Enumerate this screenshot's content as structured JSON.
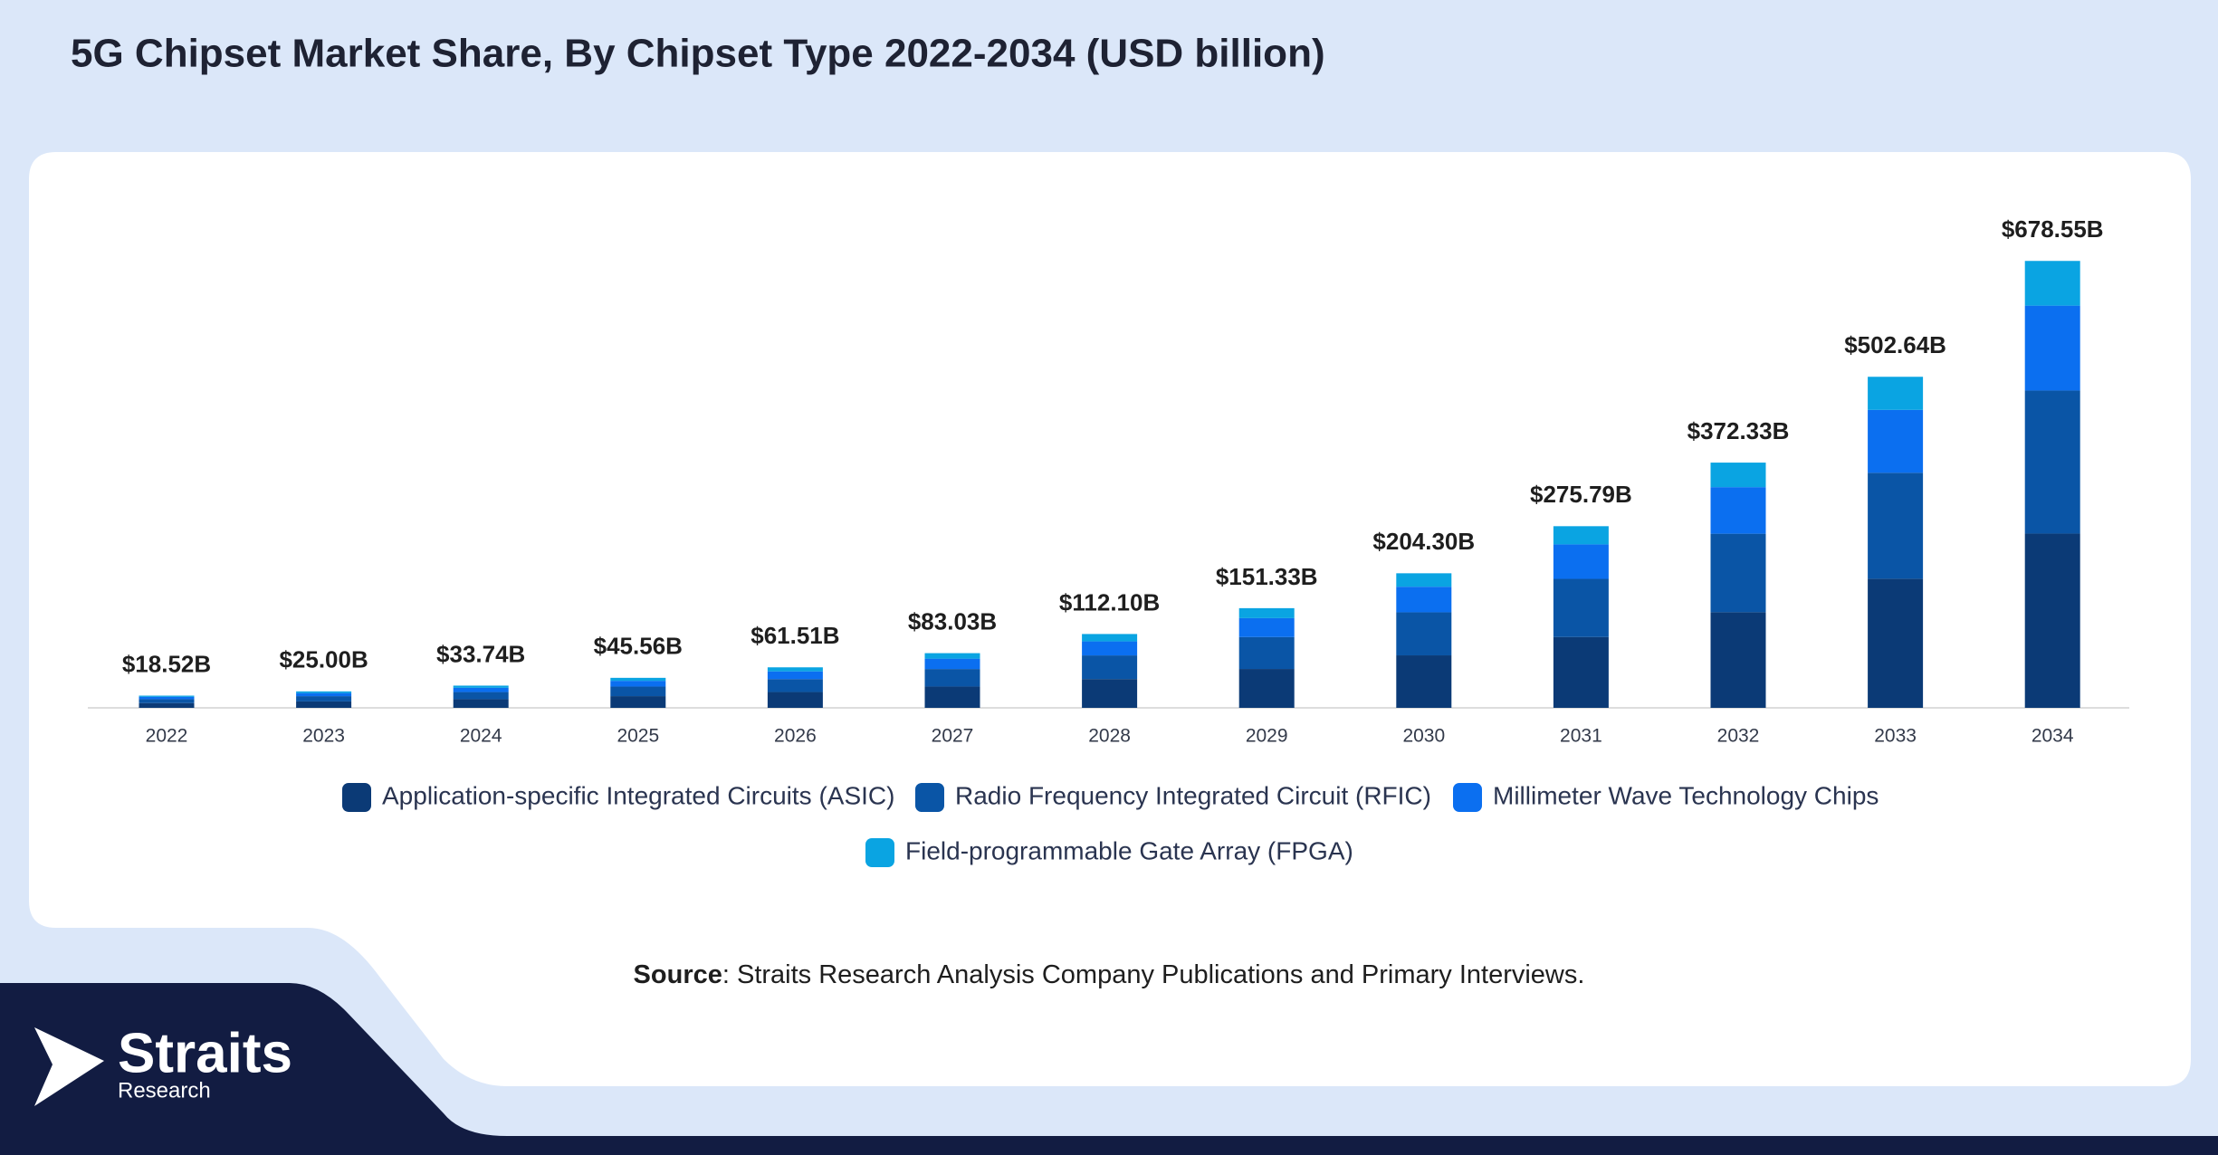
{
  "chart_data": {
    "type": "stacked_bar",
    "title": "5G Chipset Market Share, By Chipset Type 2022-2034 (USD billion)",
    "categories": [
      "2022",
      "2023",
      "2024",
      "2025",
      "2026",
      "2027",
      "2028",
      "2029",
      "2030",
      "2031",
      "2032",
      "2033",
      "2034"
    ],
    "series": [
      {
        "name": "Application-specific Integrated Circuits (ASIC)",
        "color": "#0b3a76",
        "values": [
          7.22,
          9.75,
          13.16,
          17.77,
          23.99,
          32.38,
          43.72,
          59.02,
          79.68,
          107.56,
          145.21,
          196.03,
          264.63
        ]
      },
      {
        "name": "Radio Frequency Integrated Circuit (RFIC)",
        "color": "#0a55a6",
        "values": [
          5.93,
          8.0,
          10.8,
          14.58,
          19.68,
          26.57,
          35.87,
          48.43,
          65.38,
          88.25,
          119.15,
          160.84,
          217.14
        ]
      },
      {
        "name": "Millimeter Wave Technology Chips",
        "color": "#0b6ff0",
        "values": [
          3.52,
          4.75,
          6.41,
          8.66,
          11.69,
          15.78,
          21.3,
          28.75,
          38.82,
          52.4,
          70.74,
          95.5,
          128.92
        ]
      },
      {
        "name": "Field-programmable Gate Array (FPGA)",
        "color": "#0aa4e2",
        "values": [
          1.85,
          2.5,
          3.37,
          4.55,
          6.15,
          8.3,
          11.21,
          15.13,
          20.42,
          27.58,
          37.23,
          50.27,
          67.86
        ]
      }
    ],
    "totals": {
      "values": [
        18.52,
        25.0,
        33.74,
        45.56,
        61.51,
        83.03,
        112.1,
        151.33,
        204.3,
        275.79,
        372.33,
        502.64,
        678.55
      ],
      "value_labels": [
        "$18.52B",
        "$25.00B",
        "$33.74B",
        "$45.56B",
        "$61.51B",
        "$83.03B",
        "$112.10B",
        "$151.33B",
        "$204.30B",
        "$275.79B",
        "$372.33B",
        "$502.64B",
        "$678.55B"
      ]
    },
    "ylim": [
      0,
      700
    ],
    "source_label": "Source",
    "source_text": ": Straits Research Analysis Company Publications and Primary Interviews.",
    "brand": "Straits",
    "brand_sub": "Research"
  }
}
